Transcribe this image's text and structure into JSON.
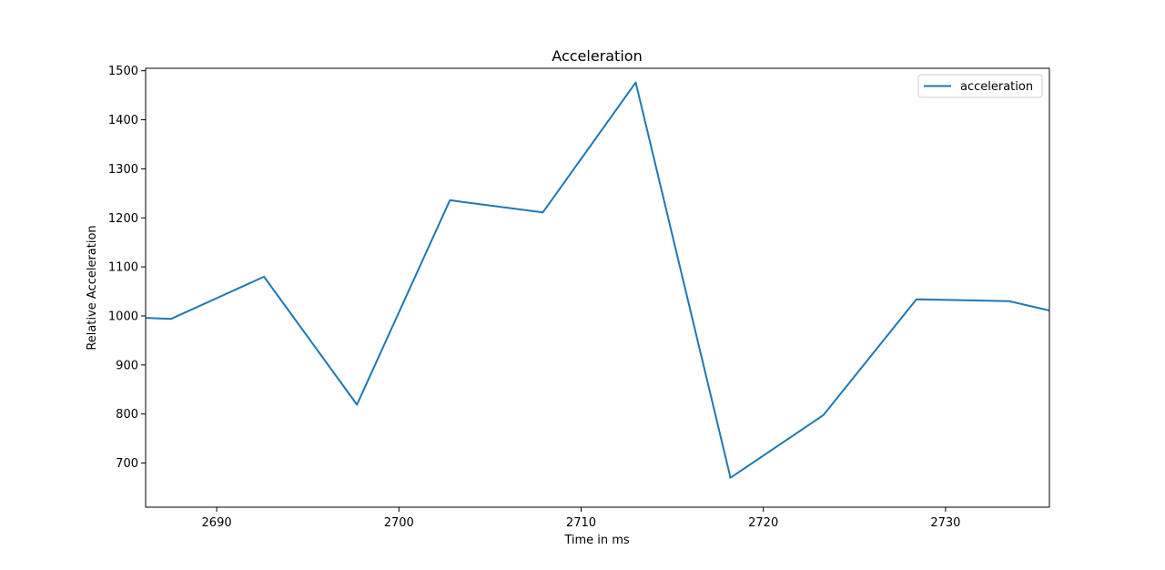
{
  "chart_data": {
    "type": "line",
    "title": "Acceleration",
    "xlabel": "Time in ms",
    "ylabel": "Relative Acceleration",
    "xlim": [
      2686.1,
      2735.7
    ],
    "ylim": [
      610,
      1505
    ],
    "xticks": [
      2690,
      2700,
      2710,
      2720,
      2730
    ],
    "yticks": [
      700,
      800,
      900,
      1000,
      1100,
      1200,
      1300,
      1400,
      1500
    ],
    "grid": false,
    "legend_position": "top-right",
    "series": [
      {
        "name": "acceleration",
        "color": "#1f77b4",
        "x": [
          2686.1,
          2687.5,
          2692.6,
          2697.7,
          2702.8,
          2707.9,
          2713.0,
          2718.2,
          2723.3,
          2728.4,
          2733.5,
          2735.7
        ],
        "y": [
          996,
          994,
          1080,
          819,
          1236,
          1211,
          1476,
          670,
          798,
          1034,
          1030,
          1011
        ]
      }
    ]
  }
}
